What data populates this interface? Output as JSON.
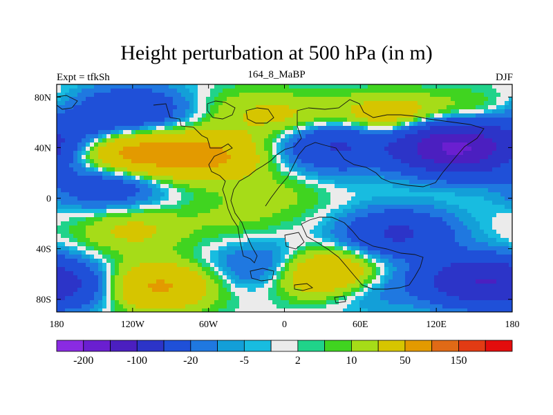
{
  "chart_data": {
    "type": "heatmap",
    "title": "Height perturbation at 500 hPa (in m)",
    "subtitle_left": "Expt = tfkSh",
    "subtitle_center": "164_8_MaBP",
    "subtitle_right": "DJF",
    "x_axis": {
      "range": [
        -180,
        180
      ],
      "ticks": [
        -180,
        -120,
        -60,
        0,
        60,
        120,
        180
      ],
      "tick_labels": [
        "180",
        "120W",
        "60W",
        "0",
        "60E",
        "120E",
        "180"
      ]
    },
    "y_axis": {
      "range": [
        -90,
        90
      ],
      "ticks": [
        80,
        40,
        0,
        -40,
        -80
      ],
      "tick_labels": [
        "80N",
        "40N",
        "0",
        "40S",
        "80S"
      ]
    },
    "colorbar": {
      "levels": [
        -200,
        -150,
        -100,
        -50,
        -20,
        -10,
        -5,
        -2,
        2,
        5,
        10,
        20,
        50,
        100,
        150,
        200
      ],
      "labels": [
        "-200",
        "-100",
        "-20",
        "-5",
        "2",
        "10",
        "50",
        "150"
      ],
      "colors": [
        "#8a2be2",
        "#6a1fd0",
        "#4b1fc0",
        "#2c34c8",
        "#1f50d8",
        "#1f78e0",
        "#139fd8",
        "#18bce0",
        "#ebebeb",
        "#20d38a",
        "#40d420",
        "#a6dc18",
        "#d6c500",
        "#e39a00",
        "#e06a16",
        "#e23b14",
        "#e30d0d"
      ]
    },
    "centers": [
      {
        "lon": -120,
        "lat": 70,
        "value": -45
      },
      {
        "lon": -170,
        "lat": 55,
        "value": -30
      },
      {
        "lon": -120,
        "lat": 35,
        "value": 62
      },
      {
        "lon": -60,
        "lat": 33,
        "value": 55
      },
      {
        "lon": -30,
        "lat": 70,
        "value": 14
      },
      {
        "lon": 40,
        "lat": 45,
        "value": -60
      },
      {
        "lon": 15,
        "lat": 60,
        "value": 25
      },
      {
        "lon": 85,
        "lat": 62,
        "value": 45
      },
      {
        "lon": 155,
        "lat": 65,
        "value": 18
      },
      {
        "lon": 140,
        "lat": 38,
        "value": -115
      },
      {
        "lon": 120,
        "lat": 45,
        "value": -60
      },
      {
        "lon": 35,
        "lat": 22,
        "value": -8
      },
      {
        "lon": -140,
        "lat": 10,
        "value": -40
      },
      {
        "lon": 0,
        "lat": 5,
        "value": 12
      },
      {
        "lon": -120,
        "lat": -25,
        "value": 24
      },
      {
        "lon": -40,
        "lat": -15,
        "value": 10
      },
      {
        "lon": 90,
        "lat": -28,
        "value": -55
      },
      {
        "lon": -10,
        "lat": -55,
        "value": -35
      },
      {
        "lon": 30,
        "lat": -60,
        "value": 70
      },
      {
        "lon": -100,
        "lat": -70,
        "value": 55
      },
      {
        "lon": -175,
        "lat": -70,
        "value": -40
      },
      {
        "lon": 150,
        "lat": -65,
        "value": -80
      },
      {
        "lon": 60,
        "lat": -70,
        "value": -22
      }
    ]
  }
}
